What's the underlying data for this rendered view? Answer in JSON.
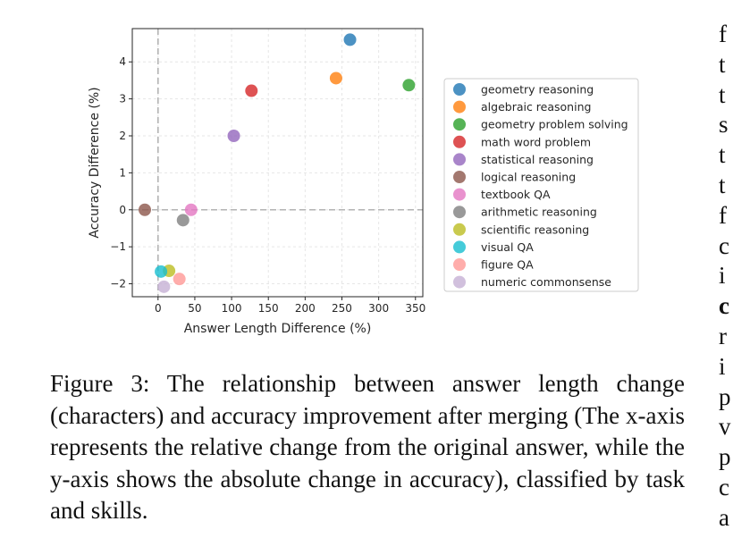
{
  "chart_data": {
    "type": "scatter",
    "xlabel": "Answer Length Difference (%)",
    "ylabel": "Accuracy Difference (%)",
    "xlim": [
      -35,
      360
    ],
    "ylim": [
      -2.35,
      4.9
    ],
    "xticks": [
      0,
      50,
      100,
      150,
      200,
      250,
      300,
      350
    ],
    "yticks": [
      -2,
      -1,
      0,
      1,
      2,
      3,
      4
    ],
    "grid": true,
    "reference_lines": {
      "x": 0,
      "y": 0,
      "style": "dashed"
    },
    "legend_position": "right, outside",
    "series": [
      {
        "name": "geometry reasoning",
        "color": "#1f77b4",
        "x": 261,
        "y": 4.6
      },
      {
        "name": "algebraic reasoning",
        "color": "#ff7f0e",
        "x": 242,
        "y": 3.56
      },
      {
        "name": "geometry problem solving",
        "color": "#2ca02c",
        "x": 341,
        "y": 3.37
      },
      {
        "name": "math word problem",
        "color": "#d62728",
        "x": 127,
        "y": 3.22
      },
      {
        "name": "statistical reasoning",
        "color": "#9467bd",
        "x": 103,
        "y": 2.0
      },
      {
        "name": "logical reasoning",
        "color": "#8c564b",
        "x": -18,
        "y": 0.0
      },
      {
        "name": "textbook QA",
        "color": "#e377c2",
        "x": 45,
        "y": 0.0
      },
      {
        "name": "arithmetic reasoning",
        "color": "#7f7f7f",
        "x": 34,
        "y": -0.28
      },
      {
        "name": "scientific reasoning",
        "color": "#bcbd22",
        "x": 15,
        "y": -1.65
      },
      {
        "name": "visual QA",
        "color": "#17becf",
        "x": 4,
        "y": -1.67
      },
      {
        "name": "figure QA",
        "color": "#ff9896",
        "x": 29,
        "y": -1.87
      },
      {
        "name": "numeric commonsense",
        "color": "#c5b0d5",
        "x": 8,
        "y": -2.08
      }
    ]
  },
  "caption": "Figure 3: The relationship between answer length change (characters) and accuracy improvement after merging (The x-axis represents the relative change from the original answer, while the y-axis shows the absolute change in accuracy), classified by task and skills.",
  "right_column_fragments": [
    "f",
    "t",
    "t",
    "s",
    "t",
    "t",
    "f",
    "c",
    "i",
    "c",
    "r",
    "i",
    "p",
    "v",
    "p",
    "c",
    "a"
  ]
}
